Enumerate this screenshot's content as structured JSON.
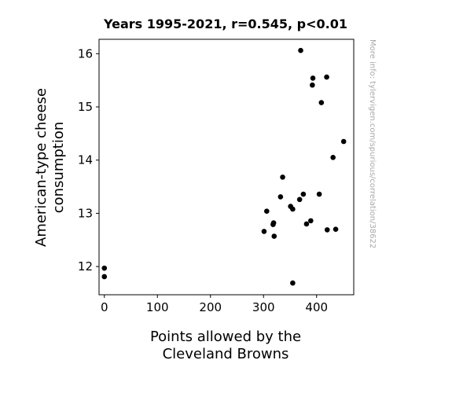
{
  "chart_data": {
    "type": "scatter",
    "title": "Years 1995-2021, r=0.545, p<0.01",
    "xlabel": [
      "Points allowed by the",
      "Cleveland Browns"
    ],
    "ylabel": [
      "American-type cheese",
      "consumption"
    ],
    "side_note": "More info: tylervigen.com/spurious/correlation/38622",
    "xlim": [
      -10,
      470
    ],
    "ylim": [
      11.47,
      16.27
    ],
    "xticks": [
      0,
      100,
      200,
      300,
      400
    ],
    "yticks": [
      12,
      13,
      14,
      15,
      16
    ],
    "grid": false,
    "marker_color": "#000000",
    "points": [
      {
        "x": 0,
        "y": 11.97
      },
      {
        "x": 0,
        "y": 11.81
      },
      {
        "x": 301,
        "y": 12.66
      },
      {
        "x": 306,
        "y": 13.04
      },
      {
        "x": 318,
        "y": 12.79
      },
      {
        "x": 319,
        "y": 12.82
      },
      {
        "x": 320,
        "y": 12.57
      },
      {
        "x": 332,
        "y": 13.31
      },
      {
        "x": 336,
        "y": 13.68
      },
      {
        "x": 351,
        "y": 13.13
      },
      {
        "x": 355,
        "y": 13.08
      },
      {
        "x": 355,
        "y": 11.69
      },
      {
        "x": 368,
        "y": 13.26
      },
      {
        "x": 370,
        "y": 16.06
      },
      {
        "x": 375,
        "y": 13.36
      },
      {
        "x": 381,
        "y": 12.8
      },
      {
        "x": 389,
        "y": 12.86
      },
      {
        "x": 392,
        "y": 15.41
      },
      {
        "x": 393,
        "y": 15.54
      },
      {
        "x": 405,
        "y": 13.36
      },
      {
        "x": 409,
        "y": 15.08
      },
      {
        "x": 419,
        "y": 15.56
      },
      {
        "x": 420,
        "y": 12.69
      },
      {
        "x": 431,
        "y": 14.05
      },
      {
        "x": 436,
        "y": 12.7
      },
      {
        "x": 451,
        "y": 14.35
      }
    ]
  }
}
